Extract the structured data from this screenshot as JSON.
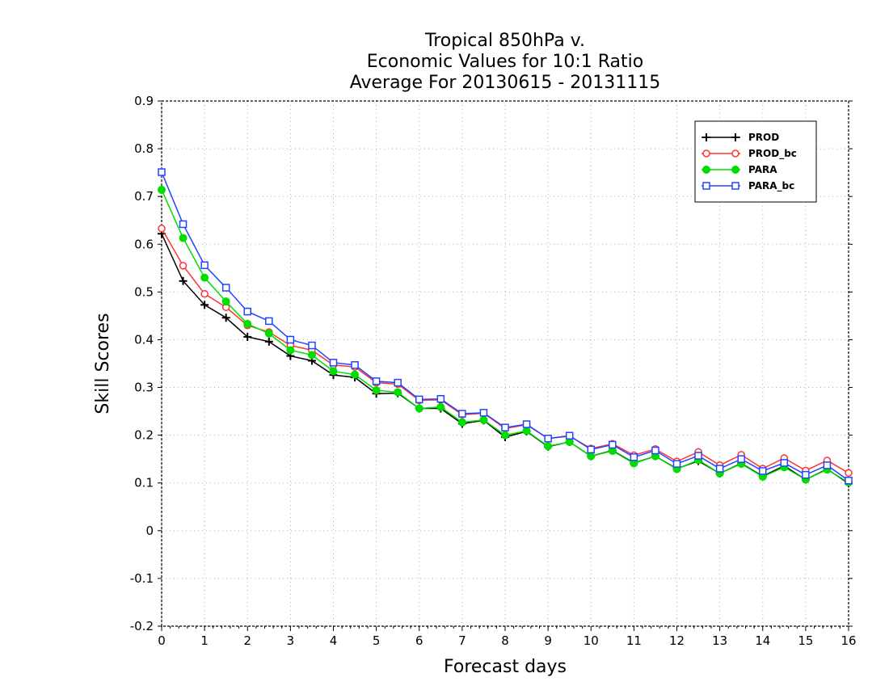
{
  "chart_data": {
    "type": "line",
    "title": [
      "Tropical 850hPa v.",
      "Economic Values for 10:1 Ratio",
      "Average For 20130615 - 20131115"
    ],
    "xlabel": "Forecast days",
    "ylabel": "Skill Scores",
    "xlim": [
      0,
      16
    ],
    "ylim": [
      -0.2,
      0.9
    ],
    "xticks": [
      0,
      1,
      2,
      3,
      4,
      5,
      6,
      7,
      8,
      9,
      10,
      11,
      12,
      13,
      14,
      15,
      16
    ],
    "xtick_labels": [
      "0",
      "1",
      "2",
      "3",
      "4",
      "5",
      "6",
      "7",
      "8",
      "9",
      "10",
      "11",
      "12",
      "13",
      "14",
      "15",
      "16"
    ],
    "yticks": [
      -0.2,
      -0.1,
      0,
      0.1,
      0.2,
      0.3,
      0.4,
      0.5,
      0.6,
      0.7,
      0.8,
      0.9
    ],
    "ytick_labels": [
      "-0.2",
      "-0.1",
      "0",
      "0.1",
      "0.2",
      "0.3",
      "0.4",
      "0.5",
      "0.6",
      "0.7",
      "0.8",
      "0.9"
    ],
    "grid": true,
    "legend_position": "top-right",
    "x": [
      0,
      0.5,
      1,
      1.5,
      2,
      2.5,
      3,
      3.5,
      4,
      4.5,
      5,
      5.5,
      6,
      6.5,
      7,
      7.5,
      8,
      8.5,
      9,
      9.5,
      10,
      10.5,
      11,
      11.5,
      12,
      12.5,
      13,
      13.5,
      14,
      14.5,
      15,
      15.5,
      16
    ],
    "series": [
      {
        "name": "PROD",
        "color": "#000000",
        "marker": "plus",
        "values": [
          0.622,
          0.523,
          0.473,
          0.446,
          0.406,
          0.396,
          0.366,
          0.356,
          0.326,
          0.321,
          0.287,
          0.288,
          0.256,
          0.256,
          0.224,
          0.231,
          0.196,
          0.208,
          0.176,
          0.186,
          0.156,
          0.168,
          0.142,
          0.156,
          0.13,
          0.146,
          0.12,
          0.141,
          0.114,
          0.136,
          0.107,
          0.129,
          0.099
        ]
      },
      {
        "name": "PROD_bc",
        "color": "#ff3333",
        "marker": "open-circle",
        "values": [
          0.633,
          0.555,
          0.496,
          0.468,
          0.43,
          0.416,
          0.388,
          0.378,
          0.347,
          0.343,
          0.31,
          0.307,
          0.273,
          0.274,
          0.243,
          0.246,
          0.214,
          0.222,
          0.193,
          0.198,
          0.172,
          0.182,
          0.158,
          0.171,
          0.145,
          0.165,
          0.137,
          0.159,
          0.13,
          0.152,
          0.126,
          0.147,
          0.121
        ]
      },
      {
        "name": "PARA",
        "color": "#00dd00",
        "marker": "filled-circle",
        "values": [
          0.714,
          0.613,
          0.53,
          0.48,
          0.433,
          0.413,
          0.378,
          0.368,
          0.334,
          0.327,
          0.294,
          0.29,
          0.256,
          0.259,
          0.227,
          0.232,
          0.2,
          0.209,
          0.177,
          0.186,
          0.156,
          0.167,
          0.141,
          0.156,
          0.129,
          0.148,
          0.12,
          0.14,
          0.113,
          0.133,
          0.107,
          0.128,
          0.101
        ]
      },
      {
        "name": "PARA_bc",
        "color": "#2244ff",
        "marker": "open-square",
        "values": [
          0.751,
          0.642,
          0.556,
          0.509,
          0.459,
          0.439,
          0.4,
          0.388,
          0.352,
          0.347,
          0.313,
          0.31,
          0.275,
          0.276,
          0.245,
          0.247,
          0.216,
          0.223,
          0.193,
          0.199,
          0.17,
          0.18,
          0.154,
          0.168,
          0.14,
          0.157,
          0.13,
          0.15,
          0.125,
          0.142,
          0.117,
          0.137,
          0.105
        ]
      }
    ]
  }
}
